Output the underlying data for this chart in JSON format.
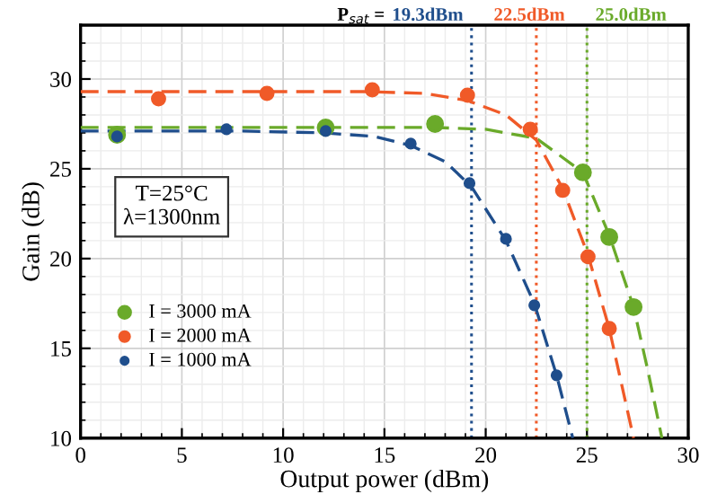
{
  "chart_data": {
    "type": "scatter",
    "xlabel": "Output power (dBm)",
    "ylabel": "Gain (dB)",
    "xlim": [
      0,
      30
    ],
    "ylim": [
      10,
      33
    ],
    "xticks": [
      0,
      5,
      10,
      15,
      20,
      25,
      30
    ],
    "yticks": [
      10,
      15,
      20,
      25,
      30
    ],
    "grid": true,
    "legend": "left",
    "series": [
      {
        "name": "I = 3000 mA",
        "color": "#6aaa2a",
        "x": [
          1.8,
          12.1,
          17.5,
          24.8,
          26.1,
          27.3
        ],
        "values": [
          26.9,
          27.3,
          27.5,
          24.8,
          21.2,
          17.3
        ],
        "marker": "circle"
      },
      {
        "name": "I = 2000 mA",
        "color": "#f05a28",
        "x": [
          3.85,
          9.2,
          14.4,
          19.1,
          22.2,
          23.8,
          25.05,
          26.1
        ],
        "values": [
          28.9,
          29.2,
          29.4,
          29.1,
          27.2,
          23.8,
          20.1,
          16.1
        ],
        "marker": "circle"
      },
      {
        "name": "I = 1000 mA",
        "color": "#1f4e8c",
        "x": [
          1.8,
          7.2,
          12.1,
          16.3,
          19.2,
          21.0,
          22.4,
          23.5
        ],
        "values": [
          26.8,
          27.2,
          27.1,
          26.4,
          24.2,
          21.1,
          17.4,
          13.5
        ],
        "marker": "circle"
      },
      {
        "type": "line",
        "line_style": "dashed",
        "color": "#6aaa2a",
        "x": [
          0,
          10,
          17.5,
          20,
          22.5,
          24.8,
          26.1,
          27.3,
          28.0,
          28.7
        ],
        "values": [
          27.3,
          27.3,
          27.3,
          27.2,
          26.7,
          24.8,
          21.3,
          17.3,
          13.8,
          10
        ]
      },
      {
        "type": "line",
        "line_style": "dashed",
        "color": "#f05a28",
        "x": [
          0,
          10,
          14,
          17,
          19.1,
          21,
          22.5,
          23.8,
          25.05,
          26.1,
          27.3
        ],
        "values": [
          29.3,
          29.3,
          29.3,
          29.2,
          28.8,
          28.0,
          26.6,
          23.9,
          20.2,
          16.1,
          10
        ]
      },
      {
        "type": "line",
        "line_style": "dashed",
        "color": "#1f4e8c",
        "x": [
          0,
          8,
          12,
          14.5,
          16.3,
          18,
          19.3,
          21.0,
          22.4,
          23.5,
          24.3
        ],
        "values": [
          27.1,
          27.1,
          27.0,
          26.8,
          26.3,
          25.4,
          24.0,
          21.0,
          17.5,
          13.5,
          10
        ]
      }
    ],
    "ref_lines": [
      {
        "axis": "x",
        "value": 19.3,
        "label": "19.3dBm",
        "color": "#1f4e8c",
        "line_style": "dotted"
      },
      {
        "axis": "x",
        "value": 22.5,
        "label": "22.5dBm",
        "color": "#f05a28",
        "line_style": "dotted"
      },
      {
        "axis": "x",
        "value": 25.0,
        "label": "25.0dBm",
        "color": "#6aaa2a",
        "line_style": "dotted"
      }
    ],
    "annotations": [
      "P$_{sat}$ =",
      "T=25°C\nλ=1300nm"
    ]
  }
}
